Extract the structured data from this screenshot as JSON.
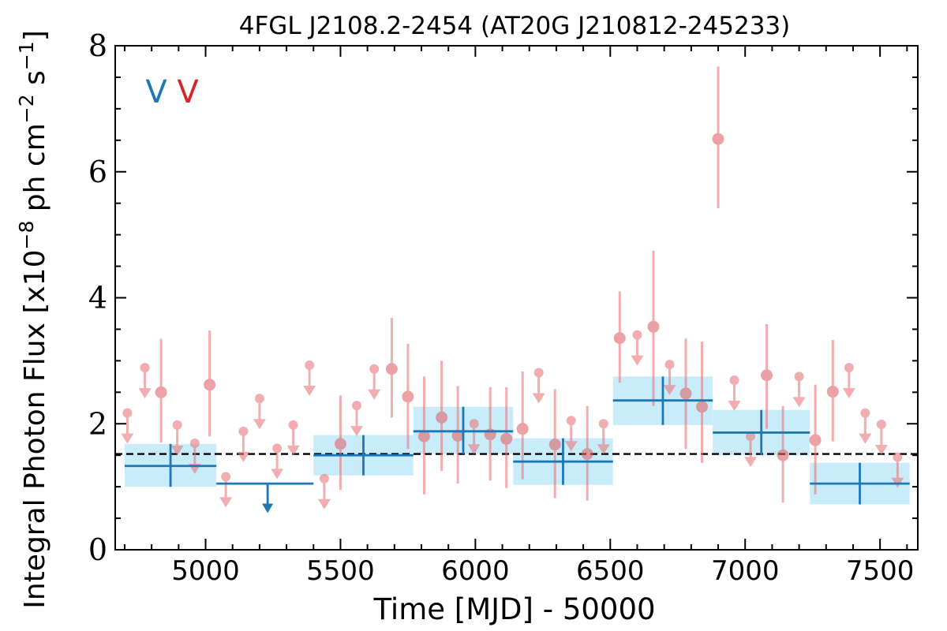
{
  "chart_data": {
    "type": "scatter",
    "title": "4FGL J2108.2-2454 (AT20G J210812-245233)",
    "xlabel": "Time [MJD] - 50000",
    "ylabel_main": "Integral Photon Flux [x10",
    "ylabel_exp1": "−8",
    "ylabel_mid": " ph cm",
    "ylabel_exp2": "−2",
    "ylabel_mid2": " s",
    "ylabel_exp3": "−1",
    "ylabel_end": "]",
    "xlim": [
      4665,
      7640
    ],
    "ylim": [
      0,
      8
    ],
    "xticks": [
      "5000",
      "5500",
      "6000",
      "6500",
      "7000",
      "7500"
    ],
    "yticks": [
      "0",
      "2",
      "4",
      "6",
      "8"
    ],
    "legend": [
      {
        "label": "V",
        "color": "#1f77b4"
      },
      {
        "label": "V",
        "color": "#d62728"
      }
    ],
    "mean_level": 1.52,
    "colors": {
      "coarse": "#1f77b4",
      "band": "#c9ecfb",
      "fine": "#e8787c",
      "mean": "#000000"
    },
    "coarse_bins": [
      {
        "x0": 4700,
        "x1": 5040,
        "y": 1.33,
        "ylo": 1.0,
        "yhi": 1.68,
        "upper_limit": false
      },
      {
        "x0": 5040,
        "x1": 5400,
        "y": 1.05,
        "upper_limit": true,
        "arrow_to": 0.62,
        "arrow_x": 5230
      },
      {
        "x0": 5400,
        "x1": 5770,
        "y": 1.5,
        "ylo": 1.18,
        "yhi": 1.82,
        "upper_limit": false
      },
      {
        "x0": 5770,
        "x1": 6140,
        "y": 1.88,
        "ylo": 1.52,
        "yhi": 2.27,
        "upper_limit": false
      },
      {
        "x0": 6140,
        "x1": 6510,
        "y": 1.4,
        "ylo": 1.03,
        "yhi": 1.77,
        "upper_limit": false
      },
      {
        "x0": 6510,
        "x1": 6880,
        "y": 2.37,
        "ylo": 1.98,
        "yhi": 2.75,
        "upper_limit": false
      },
      {
        "x0": 6880,
        "x1": 7240,
        "y": 1.86,
        "ylo": 1.5,
        "yhi": 2.22,
        "upper_limit": false
      },
      {
        "x0": 7240,
        "x1": 7610,
        "y": 1.05,
        "ylo": 0.72,
        "yhi": 1.38,
        "upper_limit": false
      }
    ],
    "fine_points": [
      {
        "x": 4710,
        "y": 2.17,
        "ul": true
      },
      {
        "x": 4775,
        "y": 2.89,
        "ul": true
      },
      {
        "x": 4835,
        "y": 2.5,
        "ylo": 1.7,
        "yhi": 3.35,
        "ul": false
      },
      {
        "x": 4895,
        "y": 1.98,
        "ul": true
      },
      {
        "x": 4960,
        "y": 1.69,
        "ul": true
      },
      {
        "x": 5015,
        "y": 2.62,
        "ylo": 1.8,
        "yhi": 3.48,
        "ul": false
      },
      {
        "x": 5075,
        "y": 1.16,
        "ul": true
      },
      {
        "x": 5140,
        "y": 1.88,
        "ul": true
      },
      {
        "x": 5200,
        "y": 2.4,
        "ul": true
      },
      {
        "x": 5265,
        "y": 1.61,
        "ul": true
      },
      {
        "x": 5325,
        "y": 1.98,
        "ul": true
      },
      {
        "x": 5385,
        "y": 2.93,
        "ul": true
      },
      {
        "x": 5440,
        "y": 1.13,
        "ul": true
      },
      {
        "x": 5500,
        "y": 1.68,
        "ylo": 0.95,
        "yhi": 2.45,
        "ul": false
      },
      {
        "x": 5560,
        "y": 2.29,
        "ul": true
      },
      {
        "x": 5625,
        "y": 2.87,
        "ul": true
      },
      {
        "x": 5690,
        "y": 2.87,
        "ylo": 2.1,
        "yhi": 3.68,
        "ul": false
      },
      {
        "x": 5750,
        "y": 2.43,
        "ylo": 1.6,
        "yhi": 3.27,
        "ul": false
      },
      {
        "x": 5810,
        "y": 1.8,
        "ylo": 0.88,
        "yhi": 2.75,
        "ul": false
      },
      {
        "x": 5875,
        "y": 2.1,
        "ylo": 1.25,
        "yhi": 3.0,
        "ul": false
      },
      {
        "x": 5935,
        "y": 1.81,
        "ylo": 1.05,
        "yhi": 2.6,
        "ul": false
      },
      {
        "x": 5995,
        "y": 2.0,
        "ul": true
      },
      {
        "x": 6055,
        "y": 1.83,
        "ylo": 1.1,
        "yhi": 2.58,
        "ul": false
      },
      {
        "x": 6115,
        "y": 1.76,
        "ylo": 0.98,
        "yhi": 2.58,
        "ul": false
      },
      {
        "x": 6175,
        "y": 1.92,
        "ylo": 1.12,
        "yhi": 2.83,
        "ul": false
      },
      {
        "x": 6235,
        "y": 2.81,
        "ul": true
      },
      {
        "x": 6295,
        "y": 1.67,
        "ylo": 0.82,
        "yhi": 2.55,
        "ul": false
      },
      {
        "x": 6355,
        "y": 2.05,
        "ul": true
      },
      {
        "x": 6415,
        "y": 1.52,
        "ylo": 0.78,
        "yhi": 2.28,
        "ul": false
      },
      {
        "x": 6475,
        "y": 2.0,
        "ul": true
      },
      {
        "x": 6535,
        "y": 3.36,
        "ylo": 2.65,
        "yhi": 4.1,
        "ul": false
      },
      {
        "x": 6600,
        "y": 3.41,
        "ul": true
      },
      {
        "x": 6660,
        "y": 3.54,
        "ylo": 2.28,
        "yhi": 4.75,
        "ul": false
      },
      {
        "x": 6720,
        "y": 2.94,
        "ul": true
      },
      {
        "x": 6780,
        "y": 2.48,
        "ylo": 1.6,
        "yhi": 3.35,
        "ul": false
      },
      {
        "x": 6840,
        "y": 2.27,
        "ylo": 1.38,
        "yhi": 3.3,
        "ul": false
      },
      {
        "x": 6900,
        "y": 6.52,
        "ylo": 5.42,
        "yhi": 7.67,
        "ul": false
      },
      {
        "x": 6960,
        "y": 2.69,
        "ul": true
      },
      {
        "x": 7020,
        "y": 1.8,
        "ul": true
      },
      {
        "x": 7080,
        "y": 2.77,
        "ylo": 1.92,
        "yhi": 3.58,
        "ul": false
      },
      {
        "x": 7140,
        "y": 1.5,
        "ylo": 0.75,
        "yhi": 2.28,
        "ul": false
      },
      {
        "x": 7200,
        "y": 2.75,
        "ul": true
      },
      {
        "x": 7260,
        "y": 1.74,
        "ylo": 0.88,
        "yhi": 2.62,
        "ul": false
      },
      {
        "x": 7325,
        "y": 2.51,
        "ylo": 1.72,
        "yhi": 3.33,
        "ul": false
      },
      {
        "x": 7385,
        "y": 2.89,
        "ul": true
      },
      {
        "x": 7445,
        "y": 2.17,
        "ul": true
      },
      {
        "x": 7505,
        "y": 1.99,
        "ul": true
      },
      {
        "x": 7565,
        "y": 1.47,
        "ul": true
      }
    ]
  }
}
